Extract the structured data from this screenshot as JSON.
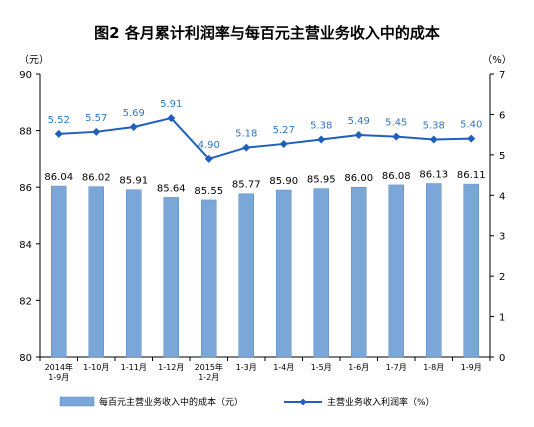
{
  "chart_data": {
    "type": "bar+line",
    "title": "图2  各月累计利润率与每百元主营业务收入中的成本",
    "left_unit": "（元）",
    "right_unit": "（%）",
    "categories": [
      [
        "2014年",
        "1-9月"
      ],
      [
        "1-10月"
      ],
      [
        "1-11月"
      ],
      [
        "1-12月"
      ],
      [
        "2015年",
        "1-2月"
      ],
      [
        "1-3月"
      ],
      [
        "1-4月"
      ],
      [
        "1-5月"
      ],
      [
        "1-6月"
      ],
      [
        "1-7月"
      ],
      [
        "1-8月"
      ],
      [
        "1-9月"
      ]
    ],
    "series": [
      {
        "name": "每百元主营业务收入中的成本（元）",
        "type": "bar",
        "axis": "left",
        "color": "#7aa7d8",
        "values": [
          86.04,
          86.02,
          85.91,
          85.64,
          85.55,
          85.77,
          85.9,
          85.95,
          86.0,
          86.08,
          86.13,
          86.11
        ],
        "labels": [
          "86.04",
          "86.02",
          "85.91",
          "85.64",
          "85.55",
          "85.77",
          "85.90",
          "85.95",
          "86.00",
          "86.08",
          "86.13",
          "86.11"
        ]
      },
      {
        "name": "主营业务收入利润率（%）",
        "type": "line",
        "axis": "right",
        "color": "#1f5fbf",
        "values": [
          5.52,
          5.57,
          5.69,
          5.91,
          4.9,
          5.18,
          5.27,
          5.38,
          5.49,
          5.45,
          5.38,
          5.4
        ],
        "labels": [
          "5.52",
          "5.57",
          "5.69",
          "5.91",
          "4.90",
          "5.18",
          "5.27",
          "5.38",
          "5.49",
          "5.45",
          "5.38",
          "5.40"
        ]
      }
    ],
    "left_axis": {
      "min": 80,
      "max": 90,
      "ticks": [
        "80",
        "82",
        "84",
        "86",
        "88",
        "90"
      ]
    },
    "right_axis": {
      "min": 0,
      "max": 7,
      "ticks": [
        "0",
        "1",
        "2",
        "3",
        "4",
        "5",
        "6",
        "7"
      ]
    },
    "grid": false,
    "legend_position": "bottom"
  }
}
